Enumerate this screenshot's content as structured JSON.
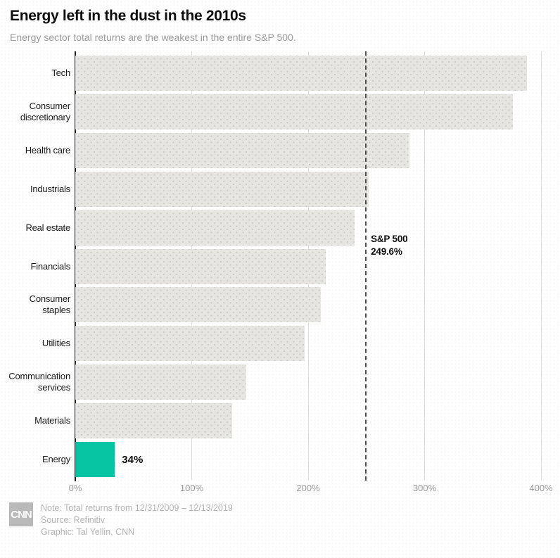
{
  "header": {
    "title": "Energy left in the dust in the 2010s",
    "subtitle": "Energy sector total returns are the weakest in the entire S&P 500."
  },
  "chart_data": {
    "type": "bar",
    "orientation": "horizontal",
    "unit": "percent total return",
    "categories": [
      "Tech",
      "Consumer discretionary",
      "Health care",
      "Industrials",
      "Real estate",
      "Financials",
      "Consumer staples",
      "Utilities",
      "Communication services",
      "Materials",
      "Energy"
    ],
    "values": [
      388,
      376,
      287,
      252,
      240,
      215,
      211,
      197,
      147,
      135,
      34
    ],
    "highlight_category": "Energy",
    "highlight_value_label": "34%",
    "x_ticks": [
      "0%",
      "100%",
      "200%",
      "300%",
      "400%"
    ],
    "x_tick_values": [
      0,
      100,
      200,
      300,
      400
    ],
    "xlim": [
      0,
      400
    ],
    "grid": "vertical",
    "reference_line": {
      "value": 249.6,
      "label_line1": "S&P 500",
      "label_line2": "249.6%"
    },
    "colors": {
      "bar": "#e6e5e1",
      "bar_dot": "#c9c8c2",
      "highlight": "#06c3a2",
      "reference_line": "#4e4e4e",
      "gridline": "#dddddd",
      "axis": "#1a1a1a",
      "tick_text": "#9b9b9b"
    }
  },
  "footer": {
    "logo": "CNN",
    "note": "Note: Total returns from 12/31/2009 – 12/13/2019",
    "source": "Source: Refinitiv",
    "credit": "Graphic: Tal Yellin, CNN"
  }
}
